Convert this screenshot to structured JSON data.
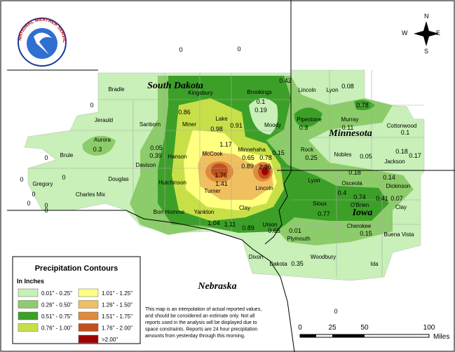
{
  "logo_text": "NATIONAL WEATHER SERVICE",
  "compass": {
    "n": "N",
    "w": "W",
    "e": "E",
    "s": "S"
  },
  "states": [
    "South Dakota",
    "Minnesota",
    "Iowa",
    "Nebraska"
  ],
  "counties": [
    "Bradle",
    "Kingsbury",
    "Brookings",
    "Jerauld",
    "Sanborn",
    "Miner",
    "Lake",
    "Moody",
    "Aurora",
    "Brule",
    "Davison",
    "Hanson",
    "McCook",
    "Minnehaha",
    "Gregory",
    "Douglas",
    "Charles Mix",
    "Hutchinson",
    "Turner",
    "Lincoln",
    "Bon Homme",
    "Yankton",
    "Clay",
    "Union",
    "Lincoln",
    "Lyon",
    "Pipestone",
    "Murray",
    "Cottonwood",
    "Rock",
    "Nobles",
    "Jackson",
    "Lyon",
    "Osceola",
    "Dickinson",
    "Sioux",
    "O'Brien",
    "Clay",
    "Plymouth",
    "Cherokee",
    "Buena Vista",
    "Woodbury",
    "Ida",
    "Dakota",
    "Dixon"
  ],
  "readings": [
    "0",
    "0",
    "0.42",
    "0.08",
    "0",
    "0.1",
    "0.19",
    "0.78",
    "0.86",
    "0.98",
    "0.91",
    "0.3",
    "0.11",
    "0.1",
    "0.3",
    "0.05",
    "0.39",
    "1.17",
    "0.65",
    "0.78",
    "0.15",
    "0.25",
    "0.05",
    "0.18",
    "0.17",
    "0",
    "0.89",
    "2.36",
    "0.18",
    "0.14",
    "1.76",
    "1.41",
    "0",
    "0",
    "0",
    "0",
    "0",
    "0",
    "0.4",
    "0.74",
    "0.41",
    "0.07",
    "0.77",
    "1.04",
    "1.11",
    "0.89",
    "0.65",
    "0.01",
    "0.15",
    "0.35",
    "0"
  ],
  "legend": {
    "title": "Precipitation Contours",
    "units": "In Inches",
    "items": [
      {
        "label": "0.01\" - 0.25\"",
        "color": "#c8f0b8"
      },
      {
        "label": "0.26\" - 0.50\"",
        "color": "#8ccc6a"
      },
      {
        "label": "0.51\" - 0.75\"",
        "color": "#3ca028"
      },
      {
        "label": "0.76\" - 1.00\"",
        "color": "#c8e048"
      },
      {
        "label": "1.01\" - 1.25\"",
        "color": "#ffff80"
      },
      {
        "label": "1.26\" - 1.50\"",
        "color": "#f0c060"
      },
      {
        "label": "1.51\" - 1.75\"",
        "color": "#e08a3c"
      },
      {
        "label": "1.76\" - 2.00\"",
        "color": "#c0501e"
      },
      {
        "label": ">2.00\"",
        "color": "#a00000"
      }
    ]
  },
  "note": [
    "This map is an interpolation of actual reported values,",
    "and should be considered an estimate only. Not all",
    "reports used in the analysis will be displayed due to",
    "space constraints. Reports are 24 hour precipitation",
    "amounts from yesterday through this morning."
  ],
  "scale": {
    "ticks": [
      "0",
      "25",
      "50",
      "100"
    ],
    "unit": "Miles"
  }
}
